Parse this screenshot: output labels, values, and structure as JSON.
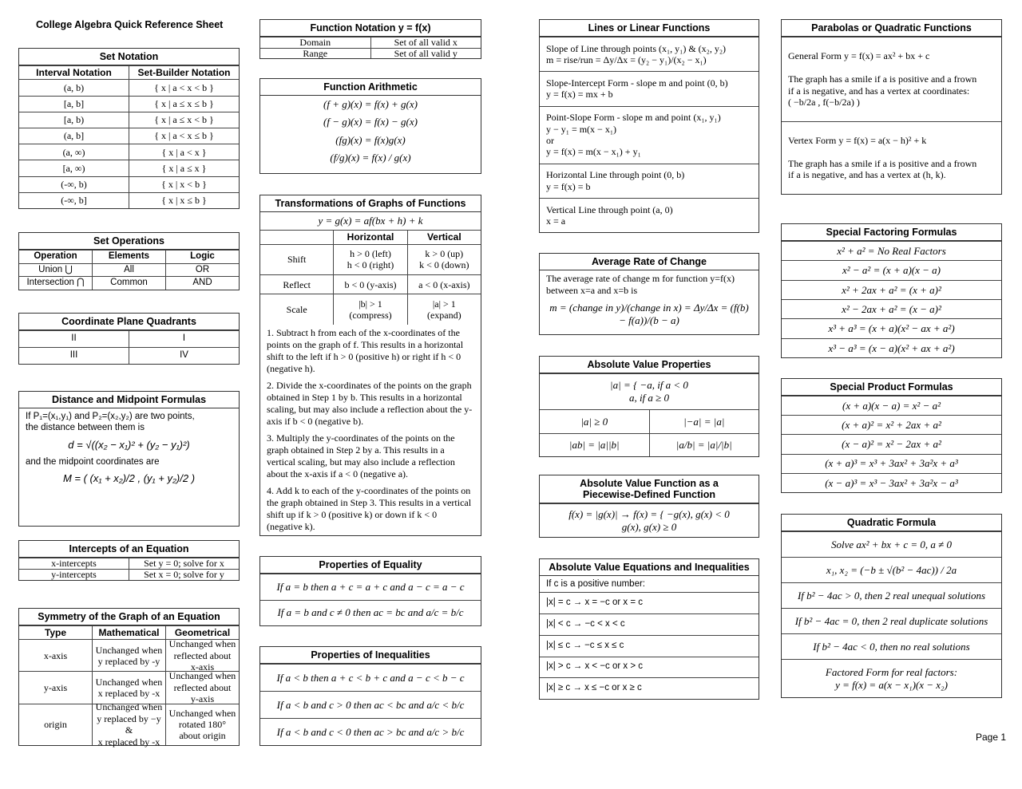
{
  "doc_title": "College Algebra Quick Reference Sheet",
  "page_label": "Page 1",
  "sections": {
    "set_notation": {
      "title": "Set Notation",
      "blocks": [
        {
          "h": [
            "Interval Notation",
            "Set-Builder Notation"
          ]
        },
        [
          "(a, b)",
          "{ x | a < x < b }"
        ],
        [
          "[a, b]",
          "{ x | a ≤ x ≤ b }"
        ],
        [
          "[a, b)",
          "{ x | a ≤ x < b }"
        ],
        [
          "(a, b]",
          "{ x | a < x ≤ b }"
        ],
        [
          "(a, ∞)",
          "{ x | a < x }"
        ],
        [
          "[a, ∞)",
          "{ x | a ≤ x }"
        ],
        [
          "(-∞, b)",
          "{ x | x < b }"
        ],
        [
          "(-∞, b]",
          "{ x | x ≤ b }"
        ]
      ]
    },
    "set_operations": {
      "title": "Set Operations",
      "blocks": [
        {
          "h": [
            "Operation",
            "Elements",
            "Logic"
          ]
        },
        [
          "Union ⋃",
          "All",
          "OR"
        ],
        [
          "Intersection ⋂",
          "Common",
          "AND"
        ]
      ]
    },
    "quadrants": {
      "title": "Coordinate Plane Quadrants",
      "blocks": [
        [
          "II",
          "I"
        ],
        [
          "III",
          "IV"
        ]
      ]
    },
    "distance": {
      "title": "Distance and Midpoint Formulas",
      "blocks": [
        {
          "p": "If P₁=(x₁,y₁) and P₂=(x₂,y₂) are two points,\nthe distance between them is"
        },
        {
          "pc": "d = √((x₂ − x₁)² + (y₂ − y₁)²)"
        },
        {
          "p": "and the midpoint coordinates are"
        },
        {
          "pc": "M = ( (x₁ + x₂)/2 , (y₁ + y₂)/2 )"
        }
      ]
    },
    "intercepts": {
      "title": "Intercepts of an Equation",
      "blocks": [
        [
          "x-intercepts",
          "Set y = 0; solve for x"
        ],
        [
          "y-intercepts",
          "Set x = 0; solve for y"
        ]
      ]
    },
    "symmetry": {
      "title": "Symmetry of the Graph of an Equation",
      "blocks": [
        {
          "h": [
            "Type",
            "Mathematical",
            "Geometrical"
          ]
        },
        [
          "x-axis",
          "Unchanged when\ny replaced by -y",
          "Unchanged when\nreflected about\nx-axis"
        ],
        [
          "y-axis",
          "Unchanged when\nx replaced by -x",
          "Unchanged when\nreflected about\ny-axis"
        ],
        [
          "origin",
          "Unchanged when\ny replaced by −y &\nx replaced by -x",
          "Unchanged when\nrotated 180°\nabout origin"
        ]
      ]
    },
    "function_notation": {
      "title": "Function Notation y = f(x)",
      "blocks": [
        [
          "Domain",
          "Set of all valid x"
        ],
        [
          "Range",
          "Set of all valid y"
        ]
      ]
    },
    "function_arithmetic": {
      "title": "Function Arithmetic",
      "blocks": [
        {
          "pc": "(f + g)(x) = f(x) + g(x)"
        },
        {
          "pc": "(f − g)(x) = f(x) − g(x)"
        },
        {
          "pc": "(fg)(x) = f(x)g(x)"
        },
        {
          "pc": "(f/g)(x) = f(x) / g(x)"
        }
      ]
    },
    "transformations": {
      "title": "Transformations of Graphs of Functions",
      "blocks": [
        {
          "pc": "y = g(x) = af(bx + h) + k"
        },
        {
          "h": [
            "",
            "Horizontal",
            "Vertical"
          ]
        },
        [
          "Shift",
          "h > 0 (left)\nh < 0 (right)",
          "k > 0 (up)\nk < 0 (down)"
        ],
        [
          "Reflect",
          "b < 0 (y-axis)",
          "a < 0 (x-axis)"
        ],
        [
          "Scale",
          "|b| > 1\n(compress)",
          "|a| > 1\n(expand)"
        ],
        {
          "p": "1. Subtract h from each of the x-coordinates of the points on the graph of f. This results in a horizontal shift to the left if h > 0 (positive h) or right if h < 0 (negative h)."
        },
        {
          "p": "2. Divide the x-coordinates of the points on the graph obtained in Step 1 by b. This results in a horizontal scaling, but may also include a reflection about the y-axis if b < 0 (negative b)."
        },
        {
          "p": "3. Multiply the y-coordinates of the points on the graph obtained in Step 2 by a. This results in a vertical scaling, but may also include a reflection about the x-axis if a < 0 (negative a)."
        },
        {
          "p": "4. Add k to each of the y-coordinates of the points on the graph obtained in Step 3. This results in a vertical shift up if k > 0 (positive k) or down if k < 0 (negative k)."
        }
      ]
    },
    "equality": {
      "title": "Properties of Equality",
      "blocks": [
        [
          "If a = b then a + c = a + c and a − c = a − c"
        ],
        [
          "If a = b and c ≠ 0 then ac = bc and a/c = b/c"
        ]
      ]
    },
    "inequalities": {
      "title": "Properties of Inequalities",
      "blocks": [
        [
          "If a < b then a + c < b + c and a − c < b − c"
        ],
        [
          "If a < b and c > 0 then ac < bc and a/c < b/c"
        ],
        [
          "If a < b and c < 0 then ac > bc and a/c > b/c"
        ]
      ]
    },
    "lines": {
      "title": "Lines or Linear Functions",
      "blocks": [
        [
          "Slope of Line through points (x₁, y₁) & (x₂, y₂)\n          m = rise/run = Δy/Δx = (y₂ − y₁)/(x₂ − x₁)"
        ],
        [
          "Slope-Intercept Form - slope m and point (0, b)\n                    y = f(x) = mx + b"
        ],
        [
          "Point-Slope Form - slope m and point (x₁, y₁)\n                    y − y₁ = m(x − x₁)\nor\n               y = f(x) = m(x − x₁) + y₁"
        ],
        [
          "Horizontal Line through point (0, b)\n                    y = f(x) = b"
        ],
        [
          "Vertical Line through point (a, 0)\n                         x = a"
        ]
      ]
    },
    "average_rate": {
      "title": "Average Rate of Change",
      "blocks": [
        {
          "p": "The average rate of change m for function y=f(x)\nbetween x=a and x=b is"
        },
        {
          "pc": "m = (change in y)/(change in x) = Δy/Δx = (f(b) − f(a))/(b − a)"
        }
      ]
    },
    "abs_properties": {
      "title": "Absolute Value Properties",
      "blocks": [
        [
          "|a| = { −a,  if a < 0\n           a,   if a ≥ 0"
        ],
        [
          "|a| ≥ 0",
          "|−a| = |a|"
        ],
        [
          "|ab| = |a||b|",
          "|a/b| = |a|/|b|"
        ]
      ]
    },
    "abs_piecewise": {
      "title": "Absolute Value Function as a\nPiecewise-Defined Function",
      "blocks": [
        [
          "f(x) = |g(x)| → f(x) = { −g(x),   g(x) < 0\n                                     g(x),   g(x) ≥ 0"
        ]
      ]
    },
    "abs_equations": {
      "title": "Absolute Value Equations and Inequalities",
      "blocks": [
        {
          "p": "If c is a positive number:"
        },
        [
          "|x| = c → x = −c or x = c"
        ],
        [
          "|x| < c → −c < x < c"
        ],
        [
          "|x| ≤ c → −c ≤ x ≤ c"
        ],
        [
          "|x| > c → x < −c or x > c"
        ],
        [
          "|x| ≥ c → x ≤ −c or x ≥ c"
        ]
      ]
    },
    "parabolas": {
      "title": "Parabolas or Quadratic Functions",
      "blocks": [
        [
          "General Form          y = f(x) = ax² + bx + c\n\nThe graph has a smile if a is positive and a frown\nif a is negative, and has a vertex at coordinates:\n                    ( −b/2a , f(−b/2a) )"
        ],
        [
          "Vertex Form          y = f(x) = a(x − h)² + k\n\nThe graph has a smile if a is positive and a frown\nif a is negative, and has a vertex at (h, k)."
        ]
      ]
    },
    "factoring": {
      "title": "Special Factoring Formulas",
      "blocks": [
        [
          "x² + a² = No Real Factors"
        ],
        [
          "x² − a² = (x + a)(x − a)"
        ],
        [
          "x² + 2ax + a² = (x + a)²"
        ],
        [
          "x² − 2ax + a² = (x − a)²"
        ],
        [
          "x³ + a³ = (x + a)(x² − ax + a²)"
        ],
        [
          "x³ − a³ = (x − a)(x² + ax + a²)"
        ]
      ]
    },
    "products": {
      "title": "Special Product Formulas",
      "blocks": [
        [
          "(x + a)(x − a) = x² − a²"
        ],
        [
          "(x + a)² = x² + 2ax + a²"
        ],
        [
          "(x − a)² = x² − 2ax + a²"
        ],
        [
          "(x + a)³ = x³ + 3ax² + 3a²x + a³"
        ],
        [
          "(x − a)³ = x³ − 3ax² + 3a²x − a³"
        ]
      ]
    },
    "quadratic": {
      "title": "Quadratic Formula",
      "blocks": [
        [
          "Solve ax² + bx + c = 0, a ≠ 0"
        ],
        [
          "x₁, x₂ = (−b ± √(b² − 4ac)) / 2a"
        ],
        [
          "If b² − 4ac > 0, then 2 real unequal solutions"
        ],
        [
          "If b² − 4ac = 0, then 2 real duplicate solutions"
        ],
        [
          "If b² − 4ac < 0, then no real solutions"
        ],
        [
          "Factored Form for real factors:\n        y = f(x) = a(x − x₁)(x − x₂)"
        ]
      ]
    }
  }
}
